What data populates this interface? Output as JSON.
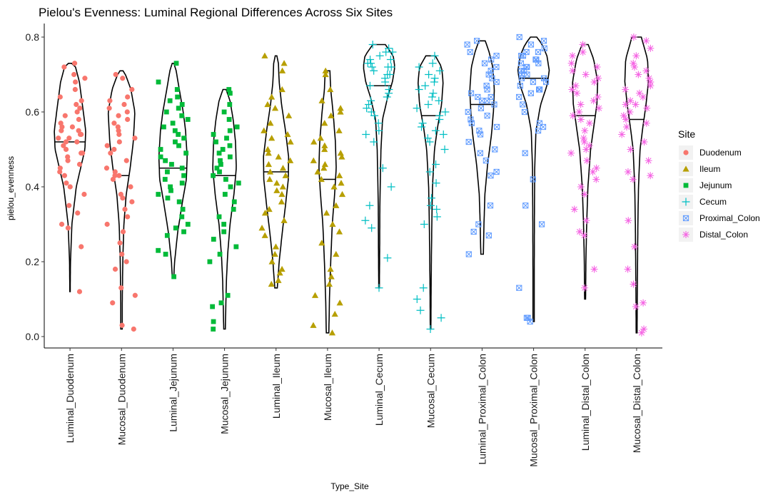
{
  "chart_data": {
    "type": "violin",
    "title": "Pielou's Evenness: Luminal Regional Differences Across Six Sites",
    "xlabel": "Type_Site",
    "ylabel": "pielou_evenness",
    "ylim": [
      -0.03,
      0.84
    ],
    "yticks": [
      0.0,
      0.2,
      0.4,
      0.6,
      0.8
    ],
    "ytick_labels": [
      "0.0",
      "0.2",
      "0.4",
      "0.6",
      "0.8"
    ],
    "grid": false,
    "legend": {
      "title": "Site",
      "placement": "right",
      "entries": [
        {
          "label": "Duodenum",
          "color": "#F8766D",
          "shape": "circle"
        },
        {
          "label": "Ileum",
          "color": "#B79F00",
          "shape": "triangle"
        },
        {
          "label": "Jejunum",
          "color": "#00BA38",
          "shape": "square"
        },
        {
          "label": "Cecum",
          "color": "#00BFC4",
          "shape": "plus"
        },
        {
          "label": "Proximal_Colon",
          "color": "#619CFF",
          "shape": "boxx"
        },
        {
          "label": "Distal_Colon",
          "color": "#F564E3",
          "shape": "asterisk"
        }
      ]
    },
    "categories": [
      {
        "label": "Luminal_Duodenum",
        "site": "Duodenum",
        "min": 0.12,
        "max": 0.73,
        "median": 0.52,
        "profile": [
          [
            0.12,
            0.01
          ],
          [
            0.2,
            0.03
          ],
          [
            0.3,
            0.12
          ],
          [
            0.4,
            0.4
          ],
          [
            0.5,
            0.95
          ],
          [
            0.55,
            1.0
          ],
          [
            0.6,
            0.85
          ],
          [
            0.68,
            0.6
          ],
          [
            0.72,
            0.35
          ],
          [
            0.73,
            0.1
          ]
        ],
        "points": [
          0.73,
          0.72,
          0.7,
          0.69,
          0.68,
          0.66,
          0.64,
          0.63,
          0.62,
          0.61,
          0.6,
          0.59,
          0.58,
          0.57,
          0.56,
          0.56,
          0.55,
          0.55,
          0.54,
          0.54,
          0.53,
          0.53,
          0.52,
          0.52,
          0.51,
          0.5,
          0.49,
          0.49,
          0.48,
          0.47,
          0.46,
          0.45,
          0.44,
          0.43,
          0.41,
          0.4,
          0.38,
          0.35,
          0.33,
          0.3,
          0.29,
          0.24,
          0.12
        ]
      },
      {
        "label": "Mucosal_Duodenum",
        "site": "Duodenum",
        "min": 0.02,
        "max": 0.71,
        "median": 0.43,
        "profile": [
          [
            0.02,
            0.05
          ],
          [
            0.1,
            0.05
          ],
          [
            0.2,
            0.08
          ],
          [
            0.3,
            0.15
          ],
          [
            0.38,
            0.3
          ],
          [
            0.45,
            0.55
          ],
          [
            0.52,
            0.75
          ],
          [
            0.6,
            0.85
          ],
          [
            0.66,
            0.6
          ],
          [
            0.7,
            0.25
          ],
          [
            0.71,
            0.1
          ]
        ],
        "points": [
          0.7,
          0.69,
          0.66,
          0.64,
          0.63,
          0.62,
          0.61,
          0.6,
          0.59,
          0.58,
          0.57,
          0.56,
          0.55,
          0.54,
          0.53,
          0.52,
          0.51,
          0.5,
          0.49,
          0.47,
          0.45,
          0.44,
          0.43,
          0.43,
          0.42,
          0.4,
          0.38,
          0.37,
          0.36,
          0.34,
          0.32,
          0.3,
          0.28,
          0.25,
          0.22,
          0.2,
          0.18,
          0.13,
          0.11,
          0.09,
          0.03,
          0.02
        ]
      },
      {
        "label": "Luminal_Jejunum",
        "site": "Jejunum",
        "min": 0.16,
        "max": 0.73,
        "median": 0.45,
        "profile": [
          [
            0.16,
            0.05
          ],
          [
            0.2,
            0.1
          ],
          [
            0.28,
            0.3
          ],
          [
            0.36,
            0.6
          ],
          [
            0.42,
            0.85
          ],
          [
            0.48,
            0.9
          ],
          [
            0.55,
            0.8
          ],
          [
            0.6,
            0.65
          ],
          [
            0.66,
            0.4
          ],
          [
            0.71,
            0.2
          ],
          [
            0.73,
            0.05
          ]
        ],
        "points": [
          0.73,
          0.68,
          0.66,
          0.64,
          0.63,
          0.62,
          0.61,
          0.6,
          0.59,
          0.58,
          0.57,
          0.56,
          0.55,
          0.54,
          0.53,
          0.52,
          0.51,
          0.5,
          0.49,
          0.48,
          0.47,
          0.46,
          0.45,
          0.44,
          0.43,
          0.42,
          0.41,
          0.4,
          0.39,
          0.38,
          0.37,
          0.36,
          0.34,
          0.32,
          0.3,
          0.29,
          0.28,
          0.27,
          0.23,
          0.22,
          0.16
        ]
      },
      {
        "label": "Mucosal_Jejunum",
        "site": "Jejunum",
        "min": 0.02,
        "max": 0.66,
        "median": 0.43,
        "profile": [
          [
            0.02,
            0.05
          ],
          [
            0.08,
            0.08
          ],
          [
            0.15,
            0.12
          ],
          [
            0.22,
            0.2
          ],
          [
            0.3,
            0.35
          ],
          [
            0.38,
            0.6
          ],
          [
            0.45,
            0.75
          ],
          [
            0.52,
            0.7
          ],
          [
            0.58,
            0.55
          ],
          [
            0.63,
            0.35
          ],
          [
            0.66,
            0.1
          ]
        ],
        "points": [
          0.66,
          0.65,
          0.62,
          0.6,
          0.58,
          0.56,
          0.55,
          0.54,
          0.53,
          0.52,
          0.51,
          0.5,
          0.49,
          0.48,
          0.47,
          0.46,
          0.45,
          0.44,
          0.43,
          0.42,
          0.41,
          0.4,
          0.38,
          0.36,
          0.34,
          0.32,
          0.3,
          0.28,
          0.26,
          0.24,
          0.22,
          0.2,
          0.11,
          0.09,
          0.08,
          0.04,
          0.02
        ]
      },
      {
        "label": "Luminal_Ileum",
        "site": "Ileum",
        "min": 0.13,
        "max": 0.75,
        "median": 0.44,
        "profile": [
          [
            0.13,
            0.08
          ],
          [
            0.2,
            0.2
          ],
          [
            0.28,
            0.4
          ],
          [
            0.35,
            0.6
          ],
          [
            0.42,
            0.78
          ],
          [
            0.48,
            0.8
          ],
          [
            0.55,
            0.6
          ],
          [
            0.62,
            0.35
          ],
          [
            0.68,
            0.2
          ],
          [
            0.73,
            0.15
          ],
          [
            0.75,
            0.05
          ]
        ],
        "points": [
          0.75,
          0.73,
          0.71,
          0.66,
          0.64,
          0.62,
          0.61,
          0.59,
          0.57,
          0.55,
          0.54,
          0.53,
          0.52,
          0.5,
          0.49,
          0.48,
          0.47,
          0.46,
          0.45,
          0.44,
          0.43,
          0.42,
          0.41,
          0.4,
          0.39,
          0.38,
          0.36,
          0.34,
          0.33,
          0.31,
          0.29,
          0.27,
          0.24,
          0.22,
          0.2,
          0.18,
          0.17,
          0.15,
          0.14
        ]
      },
      {
        "label": "Mucosal_Ileum",
        "site": "Ileum",
        "min": 0.01,
        "max": 0.71,
        "median": 0.42,
        "profile": [
          [
            0.01,
            0.08
          ],
          [
            0.05,
            0.1
          ],
          [
            0.1,
            0.12
          ],
          [
            0.2,
            0.2
          ],
          [
            0.3,
            0.3
          ],
          [
            0.38,
            0.45
          ],
          [
            0.45,
            0.55
          ],
          [
            0.52,
            0.5
          ],
          [
            0.6,
            0.35
          ],
          [
            0.66,
            0.2
          ],
          [
            0.71,
            0.15
          ]
        ],
        "points": [
          0.71,
          0.7,
          0.66,
          0.63,
          0.61,
          0.6,
          0.59,
          0.57,
          0.55,
          0.53,
          0.52,
          0.51,
          0.5,
          0.49,
          0.48,
          0.47,
          0.46,
          0.45,
          0.44,
          0.43,
          0.42,
          0.41,
          0.4,
          0.38,
          0.35,
          0.33,
          0.3,
          0.28,
          0.25,
          0.22,
          0.18,
          0.16,
          0.14,
          0.11,
          0.09,
          0.06,
          0.03,
          0.01
        ]
      },
      {
        "label": "Luminal_Cecum",
        "site": "Cecum",
        "min": 0.13,
        "max": 0.78,
        "median": 0.67,
        "profile": [
          [
            0.13,
            0.02
          ],
          [
            0.25,
            0.04
          ],
          [
            0.35,
            0.05
          ],
          [
            0.42,
            0.08
          ],
          [
            0.5,
            0.12
          ],
          [
            0.58,
            0.22
          ],
          [
            0.64,
            0.55
          ],
          [
            0.68,
            0.85
          ],
          [
            0.72,
            1.0
          ],
          [
            0.75,
            0.9
          ],
          [
            0.78,
            0.4
          ]
        ],
        "points": [
          0.78,
          0.77,
          0.76,
          0.76,
          0.75,
          0.74,
          0.74,
          0.73,
          0.73,
          0.72,
          0.72,
          0.72,
          0.71,
          0.7,
          0.7,
          0.69,
          0.68,
          0.67,
          0.66,
          0.65,
          0.64,
          0.63,
          0.62,
          0.61,
          0.6,
          0.59,
          0.57,
          0.55,
          0.54,
          0.52,
          0.45,
          0.4,
          0.35,
          0.31,
          0.29,
          0.21,
          0.13
        ]
      },
      {
        "label": "Mucosal_Cecum",
        "site": "Cecum",
        "min": 0.02,
        "max": 0.75,
        "median": 0.59,
        "profile": [
          [
            0.02,
            0.02
          ],
          [
            0.1,
            0.03
          ],
          [
            0.2,
            0.05
          ],
          [
            0.3,
            0.08
          ],
          [
            0.4,
            0.12
          ],
          [
            0.5,
            0.25
          ],
          [
            0.56,
            0.45
          ],
          [
            0.62,
            0.7
          ],
          [
            0.68,
            0.8
          ],
          [
            0.72,
            0.7
          ],
          [
            0.75,
            0.3
          ]
        ],
        "points": [
          0.75,
          0.73,
          0.72,
          0.71,
          0.7,
          0.69,
          0.68,
          0.67,
          0.66,
          0.65,
          0.64,
          0.63,
          0.62,
          0.61,
          0.6,
          0.59,
          0.58,
          0.57,
          0.56,
          0.55,
          0.54,
          0.53,
          0.52,
          0.5,
          0.46,
          0.44,
          0.41,
          0.37,
          0.35,
          0.34,
          0.32,
          0.3,
          0.13,
          0.1,
          0.07,
          0.05,
          0.02
        ]
      },
      {
        "label": "Luminal_Proximal_Colon",
        "site": "Proximal_Colon",
        "min": 0.22,
        "max": 0.79,
        "median": 0.62,
        "profile": [
          [
            0.22,
            0.08
          ],
          [
            0.3,
            0.12
          ],
          [
            0.38,
            0.18
          ],
          [
            0.46,
            0.35
          ],
          [
            0.54,
            0.6
          ],
          [
            0.6,
            0.72
          ],
          [
            0.66,
            0.78
          ],
          [
            0.72,
            0.68
          ],
          [
            0.76,
            0.45
          ],
          [
            0.79,
            0.2
          ]
        ],
        "points": [
          0.79,
          0.78,
          0.76,
          0.75,
          0.74,
          0.73,
          0.72,
          0.71,
          0.7,
          0.69,
          0.68,
          0.67,
          0.66,
          0.65,
          0.64,
          0.64,
          0.63,
          0.63,
          0.62,
          0.61,
          0.6,
          0.59,
          0.58,
          0.57,
          0.56,
          0.55,
          0.54,
          0.52,
          0.5,
          0.49,
          0.47,
          0.44,
          0.43,
          0.35,
          0.3,
          0.28,
          0.27,
          0.22
        ]
      },
      {
        "label": "Mucosal_Proximal_Colon",
        "site": "Proximal_Colon",
        "min": 0.04,
        "max": 0.8,
        "median": 0.69,
        "profile": [
          [
            0.04,
            0.04
          ],
          [
            0.15,
            0.04
          ],
          [
            0.3,
            0.05
          ],
          [
            0.45,
            0.07
          ],
          [
            0.55,
            0.15
          ],
          [
            0.62,
            0.45
          ],
          [
            0.67,
            0.85
          ],
          [
            0.71,
            1.0
          ],
          [
            0.75,
            0.85
          ],
          [
            0.78,
            0.55
          ],
          [
            0.8,
            0.2
          ]
        ],
        "points": [
          0.8,
          0.79,
          0.78,
          0.77,
          0.76,
          0.76,
          0.75,
          0.75,
          0.74,
          0.74,
          0.73,
          0.73,
          0.72,
          0.72,
          0.71,
          0.71,
          0.7,
          0.7,
          0.69,
          0.69,
          0.68,
          0.68,
          0.67,
          0.66,
          0.66,
          0.65,
          0.64,
          0.62,
          0.6,
          0.57,
          0.56,
          0.55,
          0.49,
          0.42,
          0.35,
          0.3,
          0.13,
          0.05,
          0.05,
          0.04
        ]
      },
      {
        "label": "Luminal_Distal_Colon",
        "site": "Distal_Colon",
        "min": 0.1,
        "max": 0.78,
        "median": 0.59,
        "profile": [
          [
            0.1,
            0.03
          ],
          [
            0.2,
            0.05
          ],
          [
            0.3,
            0.1
          ],
          [
            0.4,
            0.18
          ],
          [
            0.5,
            0.35
          ],
          [
            0.56,
            0.55
          ],
          [
            0.62,
            0.75
          ],
          [
            0.68,
            0.8
          ],
          [
            0.74,
            0.55
          ],
          [
            0.78,
            0.2
          ]
        ],
        "points": [
          0.78,
          0.76,
          0.75,
          0.73,
          0.72,
          0.71,
          0.7,
          0.69,
          0.68,
          0.67,
          0.66,
          0.65,
          0.64,
          0.63,
          0.62,
          0.61,
          0.6,
          0.59,
          0.58,
          0.57,
          0.55,
          0.53,
          0.52,
          0.51,
          0.5,
          0.49,
          0.47,
          0.45,
          0.44,
          0.42,
          0.4,
          0.38,
          0.34,
          0.31,
          0.28,
          0.27,
          0.18,
          0.13
        ]
      },
      {
        "label": "Mucosal_Distal_Colon",
        "site": "Distal_Colon",
        "min": 0.01,
        "max": 0.8,
        "median": 0.58,
        "profile": [
          [
            0.01,
            0.03
          ],
          [
            0.1,
            0.04
          ],
          [
            0.2,
            0.06
          ],
          [
            0.3,
            0.08
          ],
          [
            0.4,
            0.12
          ],
          [
            0.5,
            0.22
          ],
          [
            0.56,
            0.4
          ],
          [
            0.62,
            0.6
          ],
          [
            0.68,
            0.75
          ],
          [
            0.74,
            0.7
          ],
          [
            0.8,
            0.3
          ]
        ],
        "points": [
          0.8,
          0.79,
          0.77,
          0.75,
          0.73,
          0.72,
          0.71,
          0.7,
          0.69,
          0.68,
          0.67,
          0.66,
          0.65,
          0.64,
          0.63,
          0.62,
          0.62,
          0.61,
          0.6,
          0.59,
          0.58,
          0.57,
          0.56,
          0.54,
          0.52,
          0.5,
          0.47,
          0.44,
          0.43,
          0.42,
          0.31,
          0.24,
          0.18,
          0.14,
          0.09,
          0.08,
          0.02,
          0.01
        ]
      }
    ]
  }
}
